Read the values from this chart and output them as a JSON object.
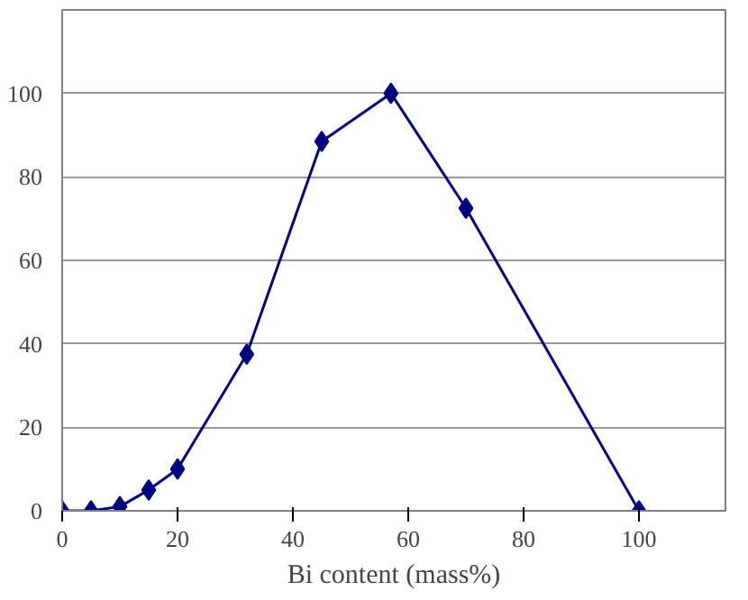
{
  "chart_data": {
    "type": "line",
    "xlabel": "Bi content (mass%)",
    "x": [
      0,
      5,
      10,
      15,
      20,
      32,
      45,
      57,
      70,
      100
    ],
    "series": [
      {
        "color": "#000080",
        "values": [
          0,
          0,
          1,
          5,
          10,
          37.5,
          88.5,
          100,
          72.5,
          0
        ]
      }
    ],
    "xlim": [
      0,
      115
    ],
    "ylim": [
      0,
      120
    ],
    "xticks": [
      0,
      20,
      40,
      60,
      80,
      100
    ],
    "yticks": [
      0,
      20,
      40,
      60,
      80,
      100
    ],
    "grid": "y",
    "marker": "diamond",
    "line_style": "solid"
  }
}
